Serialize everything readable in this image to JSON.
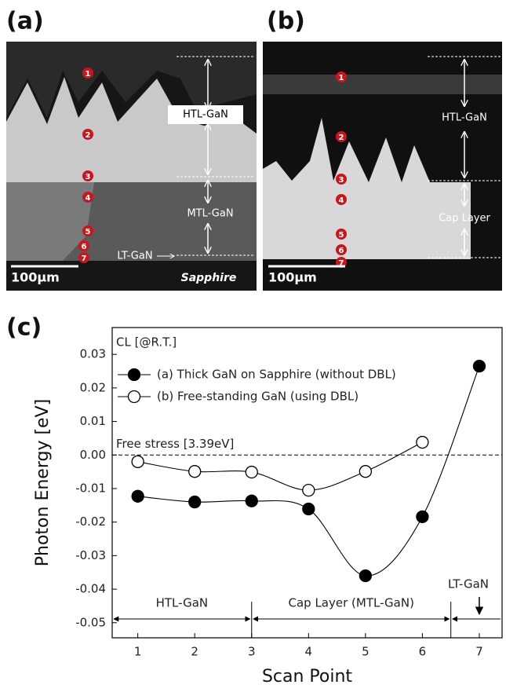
{
  "panels": [
    {
      "label": "(a)",
      "scale_bar": "100µm",
      "annotations": [
        "HTL-GaN",
        "MTL-GaN",
        "LT-GaN",
        "Sapphire"
      ],
      "points": [
        "1",
        "2",
        "3",
        "4",
        "5",
        "6",
        "7"
      ]
    },
    {
      "label": "(b)",
      "scale_bar": "100µm",
      "annotations": [
        "HTL-GaN",
        "Cap Layer"
      ],
      "points": [
        "1",
        "2",
        "3",
        "4",
        "5",
        "6",
        "7"
      ]
    }
  ],
  "chart_data": {
    "type": "scatter",
    "panel_label": "(c)",
    "xlabel": "Scan Point",
    "ylabel": "Photon Energy [eV]",
    "annotation": "CL [@R.T.]",
    "x": [
      1,
      2,
      3,
      4,
      5,
      6,
      7
    ],
    "series": [
      {
        "name": "(a) Thick GaN on Sapphire (without DBL)",
        "color": "#000000",
        "filled": true,
        "values": [
          -0.0123,
          -0.014,
          -0.0137,
          -0.0161,
          -0.036,
          -0.0184,
          0.0265
        ]
      },
      {
        "name": "(b) Free-standing GaN (using DBL)",
        "color": "#000000",
        "filled": false,
        "values": [
          -0.002,
          -0.0049,
          -0.0051,
          -0.0105,
          -0.0049,
          0.0038,
          null
        ]
      }
    ],
    "xlim": [
      0.55,
      7.4
    ],
    "ylim": [
      -0.0545,
      0.038
    ],
    "xticks": [
      1,
      2,
      3,
      4,
      5,
      6,
      7
    ],
    "yticks": [
      0.03,
      0.02,
      0.01,
      {
        "value": 0,
        "label": "0.00"
      },
      -0.01,
      -0.02,
      -0.03,
      -0.04,
      -0.05
    ],
    "reference_line": {
      "value": 0,
      "label": "Free stress [3.39eV]"
    },
    "regions": {
      "bounds": [
        3,
        6.5
      ],
      "labels": [
        "HTL-GaN",
        "Cap Layer (MTL-GaN)",
        "LT-GaN"
      ]
    }
  }
}
